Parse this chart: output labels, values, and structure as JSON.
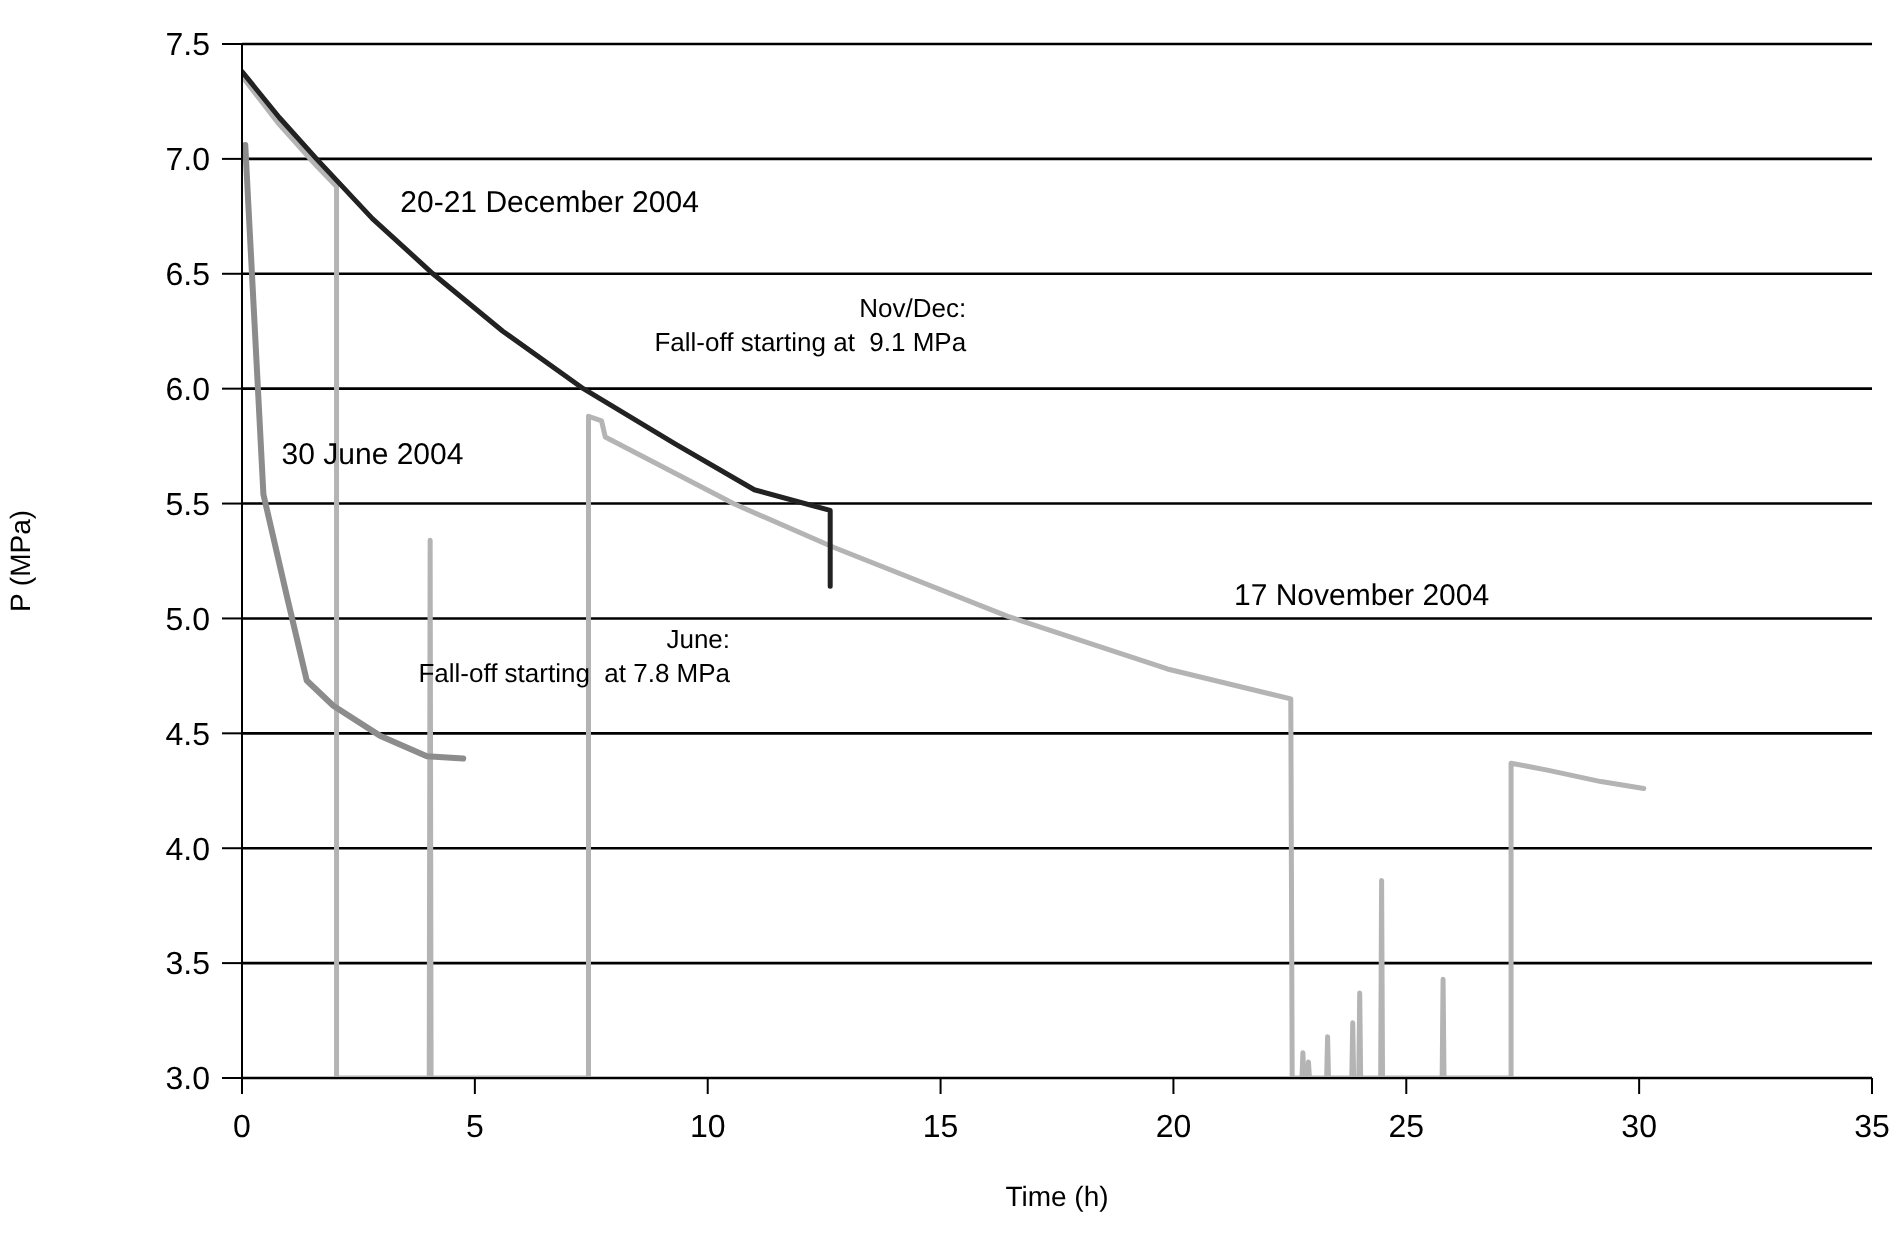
{
  "chart_data": {
    "type": "line",
    "xlabel": "Time (h)",
    "ylabel": "P (MPa)",
    "xlim": [
      0,
      35
    ],
    "xticks": [
      0,
      5,
      10,
      15,
      20,
      25,
      30,
      35
    ],
    "ylim": [
      3.0,
      7.5
    ],
    "yticks": [
      {
        "value": 3.0,
        "label": "3.0"
      },
      {
        "value": 3.5,
        "label": "3.5"
      },
      {
        "value": 4.0,
        "label": "4.0"
      },
      {
        "value": 4.5,
        "label": "4.5"
      },
      {
        "value": 5.0,
        "label": "5.0"
      },
      {
        "value": 5.5,
        "label": "5.5"
      },
      {
        "value": 6.0,
        "label": "6.0"
      },
      {
        "value": 6.5,
        "label": "6.5"
      },
      {
        "value": 7.0,
        "label": "7.0"
      },
      {
        "value": 7.5,
        "label": "7.5"
      }
    ],
    "grid": "y",
    "legend": false,
    "marker": "none",
    "line_style": "solid",
    "series": [
      {
        "color": "#b4b4b4",
        "x": [
          0,
          0.8,
          1.6,
          2.03,
          2.03,
          4.02,
          4.04,
          4.06,
          7.44,
          7.44,
          7.72,
          7.8,
          10.55,
          12.7,
          16.43,
          19.87,
          22.52,
          22.55,
          22.76,
          22.78,
          22.8,
          22.88,
          22.9,
          22.92,
          23.29,
          23.31,
          23.33,
          23.83,
          23.85,
          23.87,
          23.98,
          24.0,
          24.02,
          24.45,
          24.47,
          24.49,
          25.77,
          25.79,
          25.81,
          27.25,
          27.25,
          28.03,
          29.18,
          30.1
        ],
        "values": [
          7.36,
          7.15,
          6.97,
          6.88,
          3.0,
          3.0,
          5.34,
          3.0,
          3.0,
          5.88,
          5.86,
          5.79,
          5.5,
          5.31,
          5.01,
          4.78,
          4.65,
          3.0,
          3.0,
          3.11,
          3.0,
          3.0,
          3.07,
          3.0,
          3.0,
          3.18,
          3.0,
          3.0,
          3.24,
          3.0,
          3.0,
          3.37,
          3.0,
          3.0,
          3.86,
          3.0,
          3.0,
          3.43,
          3.0,
          3.0,
          4.37,
          4.34,
          4.29,
          4.26
        ]
      },
      {
        "color": "#8c8c8c",
        "x": [
          0.07,
          0.46,
          0.96,
          1.39,
          1.96,
          2.96,
          3.97,
          4.75
        ],
        "values": [
          7.06,
          5.54,
          5.1,
          4.73,
          4.62,
          4.49,
          4.4,
          4.39
        ]
      },
      {
        "color": "#222222",
        "x": [
          0,
          0.8,
          1.6,
          2.8,
          4.1,
          5.6,
          7.33,
          9.3,
          11.0,
          12.63,
          12.63
        ],
        "values": [
          7.38,
          7.18,
          7.0,
          6.74,
          6.5,
          6.25,
          6.0,
          5.76,
          5.56,
          5.47,
          5.14
        ]
      }
    ],
    "annotations": [
      "20-21 December 2004",
      "Nov/Dec:\nFall-off starting at  9.1 MPa",
      "30 June 2004",
      "June:\nFall-off starting  at 7.8 MPa",
      "17 November 2004"
    ]
  }
}
